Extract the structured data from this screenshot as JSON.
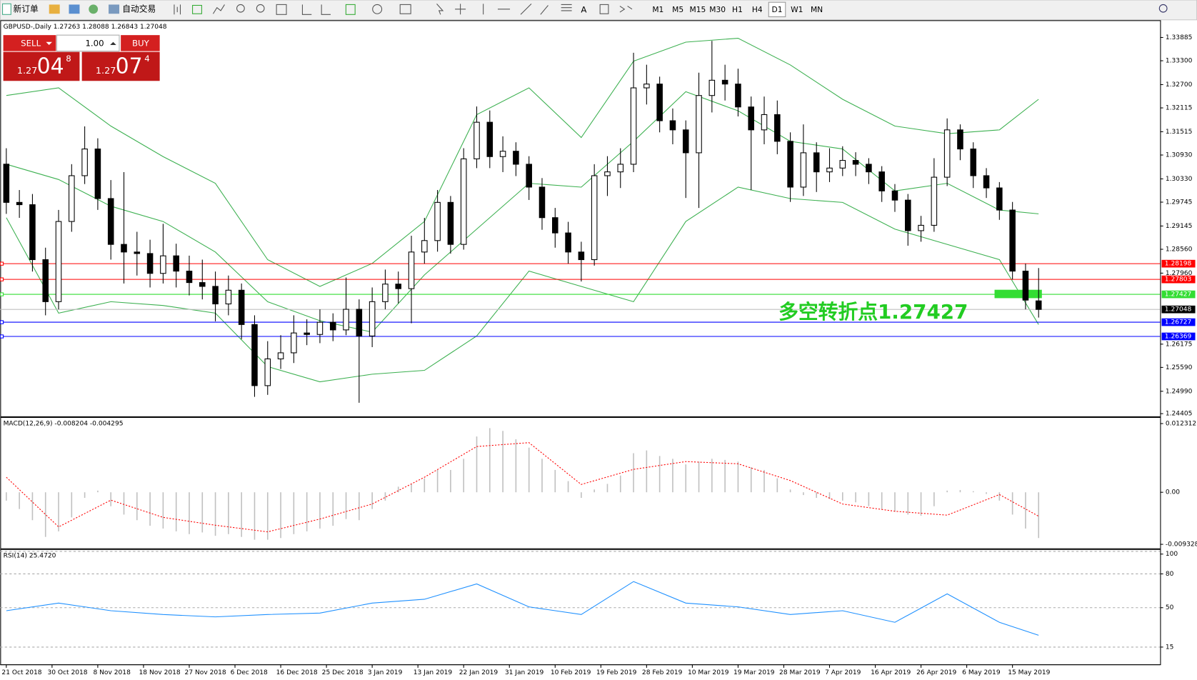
{
  "toolbar": {
    "new_order": "新订单",
    "auto_trading": "自动交易",
    "timeframes": [
      "M1",
      "M5",
      "M15",
      "M30",
      "H1",
      "H4",
      "D1",
      "W1",
      "MN"
    ],
    "active_timeframe": 6
  },
  "trade_panel": {
    "sell": "SELL",
    "buy": "BUY",
    "lot": "1.00",
    "sell_price": {
      "big": "1.27",
      "pips": "04",
      "frac": "8"
    },
    "buy_price": {
      "big": "1.27",
      "pips": "07",
      "frac": "4"
    }
  },
  "chart_data": [
    {
      "type": "candlestick",
      "title": "GBPUSD-,Daily  1.27263 1.28088 1.26843 1.27048",
      "x": [
        0,
        2,
        4,
        6,
        8,
        10,
        12,
        14,
        16,
        18,
        20,
        22,
        24,
        26,
        28,
        30,
        32,
        34,
        36,
        38,
        40,
        42,
        44,
        46,
        48,
        50,
        52,
        54,
        56,
        58,
        60,
        62,
        64,
        66,
        68,
        70,
        72,
        74,
        76,
        78,
        80,
        82,
        84,
        86,
        88,
        90,
        92,
        94,
        96,
        98,
        100,
        102,
        104,
        106,
        108,
        110,
        112,
        114,
        116,
        118,
        120,
        122,
        124,
        126,
        128,
        130,
        132,
        134,
        136,
        138,
        140,
        142,
        144,
        146,
        148,
        150,
        152,
        154,
        156,
        158
      ],
      "open": [
        1.307,
        1.29739,
        1.29681,
        1.28299,
        1.27243,
        1.29259,
        1.3041,
        1.31082,
        1.29835,
        1.28683,
        1.28491,
        1.28453,
        1.27954,
        1.28395,
        1.28011,
        1.27723,
        1.27627,
        1.27186,
        1.27531,
        1.26668,
        1.25132,
        1.25804,
        1.25957,
        1.26456,
        1.26418,
        1.26725,
        1.26533,
        1.27051,
        1.2638,
        1.27243,
        1.27685,
        1.2757,
        1.28491,
        1.28779,
        1.29739,
        1.28683,
        1.30833,
        1.31754,
        1.3089,
        1.31025,
        1.30698,
        1.30123,
        1.29355,
        1.28971,
        1.28491,
        1.28299,
        1.3041,
        1.30506,
        1.30698,
        1.32618,
        1.32714,
        1.31792,
        1.31562,
        1.30986,
        1.32426,
        1.3281,
        1.32714,
        1.32138,
        1.31562,
        1.31946,
        1.31274,
        1.30123,
        1.30986,
        1.30506,
        1.30602,
        1.30794,
        1.30698,
        1.30506,
        1.30027,
        1.29796,
        1.29028,
        1.29163,
        1.30372,
        1.31562,
        1.31082,
        1.3041,
        1.30103,
        1.29547,
        1.28011,
        1.27263
      ],
      "high": [
        1.311,
        1.3005,
        1.2995,
        1.286,
        1.2955,
        1.307,
        1.3165,
        1.3135,
        1.303,
        1.305,
        1.29,
        1.288,
        1.292,
        1.287,
        1.284,
        1.283,
        1.28,
        1.279,
        1.277,
        1.269,
        1.2625,
        1.264,
        1.269,
        1.268,
        1.2705,
        1.2695,
        1.2785,
        1.273,
        1.276,
        1.2805,
        1.28,
        1.289,
        1.2935,
        1.3005,
        1.299,
        1.311,
        1.3215,
        1.3205,
        1.314,
        1.3125,
        1.309,
        1.3035,
        1.296,
        1.2925,
        1.2875,
        1.307,
        1.309,
        1.311,
        1.335,
        1.332,
        1.329,
        1.321,
        1.318,
        1.33,
        1.338,
        1.332,
        1.331,
        1.324,
        1.324,
        1.323,
        1.315,
        1.317,
        1.3125,
        1.311,
        1.3115,
        1.31,
        1.3085,
        1.3065,
        1.302,
        1.2995,
        1.294,
        1.3085,
        1.3185,
        1.317,
        1.3125,
        1.306,
        1.3025,
        1.2975,
        1.282,
        1.28088
      ],
      "low": [
        1.2945,
        1.2935,
        1.28,
        1.269,
        1.2705,
        1.29,
        1.302,
        1.2955,
        1.283,
        1.277,
        1.279,
        1.276,
        1.277,
        1.276,
        1.274,
        1.273,
        1.2675,
        1.269,
        1.263,
        1.2485,
        1.249,
        1.2555,
        1.257,
        1.2615,
        1.262,
        1.2625,
        1.264,
        1.247,
        1.261,
        1.2705,
        1.272,
        1.267,
        1.282,
        1.285,
        1.2845,
        1.2855,
        1.306,
        1.306,
        1.305,
        1.304,
        1.298,
        1.2905,
        1.286,
        1.282,
        1.2775,
        1.2815,
        1.299,
        1.301,
        1.305,
        1.322,
        1.315,
        1.312,
        1.2985,
        1.296,
        1.32,
        1.323,
        1.319,
        1.3005,
        1.312,
        1.3095,
        1.2975,
        1.299,
        1.3,
        1.3025,
        1.304,
        1.304,
        1.302,
        1.2975,
        1.295,
        1.2865,
        1.2875,
        1.29,
        1.3015,
        1.308,
        1.301,
        1.2985,
        1.293,
        1.278,
        1.2705,
        1.26843
      ],
      "close": [
        1.29739,
        1.29681,
        1.28299,
        1.27243,
        1.29259,
        1.3041,
        1.31082,
        1.29835,
        1.28683,
        1.28491,
        1.28453,
        1.27954,
        1.28395,
        1.28011,
        1.27723,
        1.27627,
        1.27186,
        1.27531,
        1.26668,
        1.25132,
        1.25804,
        1.25957,
        1.26456,
        1.26418,
        1.26725,
        1.26533,
        1.27051,
        1.2638,
        1.27243,
        1.27685,
        1.2757,
        1.28491,
        1.28779,
        1.29739,
        1.28683,
        1.30833,
        1.31754,
        1.3089,
        1.31025,
        1.30698,
        1.30123,
        1.29355,
        1.28971,
        1.28491,
        1.28299,
        1.3041,
        1.30506,
        1.30698,
        1.32618,
        1.32714,
        1.31792,
        1.31562,
        1.30986,
        1.32426,
        1.3281,
        1.32714,
        1.32138,
        1.31562,
        1.31946,
        1.31274,
        1.30123,
        1.30986,
        1.30506,
        1.30602,
        1.30794,
        1.30698,
        1.30506,
        1.30027,
        1.29796,
        1.29028,
        1.29163,
        1.30372,
        1.31562,
        1.31082,
        1.3041,
        1.30103,
        1.29547,
        1.28011,
        1.27282,
        1.27048
      ],
      "bull_color": "#ffffff",
      "bear_color": "#000000",
      "bands": {
        "color": "#3cb050",
        "x": [
          0,
          8,
          16,
          24,
          32,
          40,
          48,
          56,
          64,
          72,
          80,
          88,
          96,
          104,
          112,
          120,
          128,
          136,
          144,
          152,
          158
        ],
        "upper": [
          1.32426,
          1.32618,
          1.31658,
          1.3089,
          1.30218,
          1.28299,
          1.27627,
          1.28203,
          1.29259,
          1.31946,
          1.32618,
          1.3137,
          1.33289,
          1.33769,
          1.33865,
          1.33194,
          1.3233,
          1.31658,
          1.31466,
          1.31562,
          1.3233
        ],
        "middle": [
          1.30698,
          1.30314,
          1.29643,
          1.29259,
          1.28491,
          1.27243,
          1.26764,
          1.26476,
          1.27915,
          1.29067,
          1.30218,
          1.30123,
          1.31274,
          1.32522,
          1.32042,
          1.31274,
          1.31082,
          1.30027,
          1.30218,
          1.29547,
          1.29451
        ],
        "lower": [
          1.29355,
          1.26955,
          1.27243,
          1.27147,
          1.26955,
          1.25612,
          1.25228,
          1.2542,
          1.25516,
          1.2638,
          1.28011,
          1.27627,
          1.27243,
          1.29259,
          1.30123,
          1.29835,
          1.29739,
          1.29067,
          1.28683,
          1.28299,
          1.26668
        ]
      },
      "hlines": [
        {
          "value": 1.28198,
          "color": "#ff0000"
        },
        {
          "value": 1.27803,
          "color": "#ff0000"
        },
        {
          "value": 1.27427,
          "color": "#33dd33"
        },
        {
          "value": 1.26727,
          "color": "#0000ff"
        },
        {
          "value": 1.26369,
          "color": "#0000ff"
        }
      ],
      "price_line_color": "#c0c0c0",
      "annotation": "多空转折点1.27427",
      "annotation_color": "#22cc22",
      "xlim": [
        -0.93,
        176.6
      ],
      "xticks": [
        {
          "value": 0,
          "label": "21 Oct 2018"
        },
        {
          "value": 7,
          "label": "30 Oct 2018"
        },
        {
          "value": 14,
          "label": "8 Nov 2018"
        },
        {
          "value": 21,
          "label": "18 Nov 2018"
        },
        {
          "value": 28,
          "label": "27 Nov 2018"
        },
        {
          "value": 35,
          "label": "6 Dec 2018"
        },
        {
          "value": 42,
          "label": "16 Dec 2018"
        },
        {
          "value": 49,
          "label": "25 Dec 2018"
        },
        {
          "value": 56,
          "label": "3 Jan 2019"
        },
        {
          "value": 63,
          "label": "13 Jan 2019"
        },
        {
          "value": 70,
          "label": "22 Jan 2019"
        },
        {
          "value": 77,
          "label": "31 Jan 2019"
        },
        {
          "value": 84,
          "label": "10 Feb 2019"
        },
        {
          "value": 91,
          "label": "19 Feb 2019"
        },
        {
          "value": 98,
          "label": "28 Feb 2019"
        },
        {
          "value": 105,
          "label": "10 Mar 2019"
        },
        {
          "value": 112,
          "label": "19 Mar 2019"
        },
        {
          "value": 119,
          "label": "28 Mar 2019"
        },
        {
          "value": 126,
          "label": "7 Apr 2019"
        },
        {
          "value": 133,
          "label": "16 Apr 2019"
        },
        {
          "value": 140,
          "label": "26 Apr 2019"
        },
        {
          "value": 147,
          "label": "6 May 2019"
        },
        {
          "value": 154,
          "label": "15 May 2019"
        }
      ],
      "ylim": [
        1.2437,
        1.3429
      ],
      "yticks": [
        1.33885,
        {
          "value": 1.333,
          "label": "1.33300"
        },
        {
          "value": 1.327,
          "label": "1.32700"
        },
        1.32115,
        1.31515,
        {
          "value": 1.3093,
          "label": "1.30930"
        },
        {
          "value": 1.3033,
          "label": "1.30330"
        },
        1.29745,
        1.29145,
        {
          "value": 1.2856,
          "label": "1.28560"
        },
        {
          "value": 1.2796,
          "label": "1.27960"
        },
        1.26175,
        {
          "value": 1.2559,
          "label": "1.25590"
        },
        {
          "value": 1.2499,
          "label": "1.24990"
        },
        1.24405
      ]
    },
    {
      "type": "macd",
      "title": "MACD(12,26,9) -0.008204 -0.004295",
      "x": [
        0,
        2,
        4,
        6,
        8,
        10,
        12,
        14,
        16,
        18,
        20,
        22,
        24,
        26,
        28,
        30,
        32,
        34,
        36,
        38,
        40,
        42,
        44,
        46,
        48,
        50,
        52,
        54,
        56,
        58,
        60,
        62,
        64,
        66,
        68,
        70,
        72,
        74,
        76,
        78,
        80,
        82,
        84,
        86,
        88,
        90,
        92,
        94,
        96,
        98,
        100,
        102,
        104,
        106,
        108,
        110,
        112,
        114,
        116,
        118,
        120,
        122,
        124,
        126,
        128,
        130,
        132,
        134,
        136,
        138,
        140,
        142,
        144,
        146,
        148,
        150,
        152,
        154,
        156,
        158
      ],
      "values": [
        -0.0015,
        -0.003,
        -0.005,
        -0.008,
        -0.007,
        -0.0045,
        -0.001,
        0.0003,
        -0.0025,
        -0.004,
        -0.005,
        -0.006,
        -0.0065,
        -0.007,
        -0.0075,
        -0.0072,
        -0.0078,
        -0.0075,
        -0.008,
        -0.0085,
        -0.0085,
        -0.0082,
        -0.0075,
        -0.007,
        -0.0065,
        -0.006,
        -0.0048,
        -0.005,
        -0.003,
        -0.0015,
        0.001,
        0.0015,
        0.0025,
        0.004,
        0.004,
        0.006,
        0.01,
        0.0115,
        0.011,
        0.0095,
        0.008,
        0.006,
        0.004,
        0.002,
        -0.001,
        0.0005,
        0.0015,
        0.003,
        0.007,
        0.0075,
        0.0065,
        0.006,
        0.005,
        0.0055,
        0.006,
        0.0058,
        0.0055,
        0.0045,
        0.004,
        0.0025,
        0.0005,
        -0.0005,
        -0.001,
        -0.0012,
        -0.0015,
        -0.0018,
        -0.0025,
        -0.003,
        -0.0035,
        -0.004,
        -0.0042,
        -0.0025,
        0.0003,
        0.0004,
        0.0002,
        -0.0003,
        -0.0015,
        -0.004,
        -0.0065,
        -0.008204
      ],
      "color": "#c0c0c0",
      "signal": {
        "color": "#ff0000",
        "x": [
          0,
          8,
          16,
          24,
          32,
          40,
          48,
          56,
          64,
          72,
          80,
          88,
          96,
          104,
          112,
          120,
          128,
          136,
          144,
          152,
          158
        ],
        "values": [
          0.0027,
          -0.0062,
          -0.0014,
          -0.0045,
          -0.0059,
          -0.0071,
          -0.0048,
          -0.0021,
          0.0027,
          0.0082,
          0.0089,
          0.0014,
          0.0041,
          0.0055,
          0.0051,
          0.0021,
          -0.0021,
          -0.0034,
          -0.0041,
          -0.0004,
          -0.004295
        ]
      },
      "ylim": [
        -0.00998,
        0.01327
      ],
      "yticks": [
        0.012312,
        {
          "value": 0,
          "label": "0.00"
        },
        -0.009328
      ]
    },
    {
      "type": "line",
      "title": "RSI(14) 25.4720",
      "x": [
        0,
        8,
        16,
        24,
        32,
        40,
        48,
        56,
        64,
        72,
        80,
        88,
        96,
        104,
        112,
        120,
        128,
        136,
        144,
        152,
        158
      ],
      "values": [
        47.3,
        54.1,
        47.3,
        43.9,
        41.8,
        43.9,
        45.2,
        54.1,
        57.5,
        71.1,
        50.7,
        43.9,
        73.2,
        54.1,
        50.7,
        43.9,
        47.3,
        37.0,
        62.3,
        37.0,
        25.472
      ],
      "color": "#1e90ff",
      "grid": true,
      "ylim": [
        0,
        101
      ],
      "yticks": [
        100,
        80,
        50,
        15
      ]
    }
  ]
}
